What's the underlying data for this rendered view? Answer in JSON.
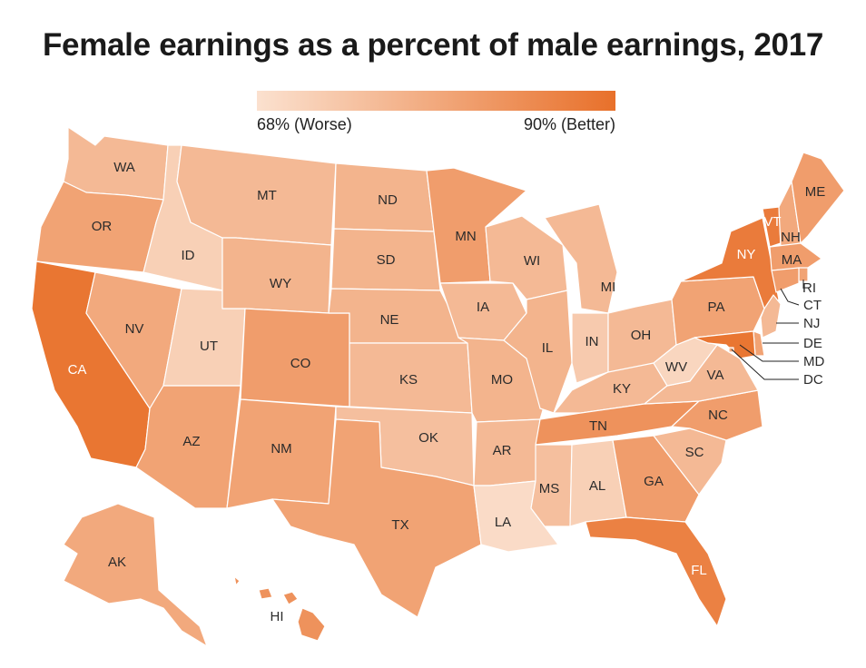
{
  "title": "Female earnings as a percent of male earnings, 2017",
  "legend": {
    "min_label": "68% (Worse)",
    "max_label": "90% (Better)",
    "color_low": "#fbe1cf",
    "color_high": "#e8702a"
  },
  "states": {
    "WA": {
      "label": "WA",
      "shade": 0.35
    },
    "OR": {
      "label": "OR",
      "shade": 0.55
    },
    "CA": {
      "label": "CA",
      "shade": 0.95
    },
    "ID": {
      "label": "ID",
      "shade": 0.15
    },
    "NV": {
      "label": "NV",
      "shade": 0.5
    },
    "UT": {
      "label": "UT",
      "shade": 0.15
    },
    "AZ": {
      "label": "AZ",
      "shade": 0.55
    },
    "MT": {
      "label": "MT",
      "shade": 0.35
    },
    "WY": {
      "label": "WY",
      "shade": 0.4
    },
    "CO": {
      "label": "CO",
      "shade": 0.6
    },
    "NM": {
      "label": "NM",
      "shade": 0.55
    },
    "ND": {
      "label": "ND",
      "shade": 0.4
    },
    "SD": {
      "label": "SD",
      "shade": 0.4
    },
    "NE": {
      "label": "NE",
      "shade": 0.4
    },
    "KS": {
      "label": "KS",
      "shade": 0.35
    },
    "OK": {
      "label": "OK",
      "shade": 0.3
    },
    "TX": {
      "label": "TX",
      "shade": 0.55
    },
    "MN": {
      "label": "MN",
      "shade": 0.6
    },
    "IA": {
      "label": "IA",
      "shade": 0.35
    },
    "MO": {
      "label": "MO",
      "shade": 0.4
    },
    "AR": {
      "label": "AR",
      "shade": 0.35
    },
    "LA": {
      "label": "LA",
      "shade": 0.05
    },
    "WI": {
      "label": "WI",
      "shade": 0.35
    },
    "IL": {
      "label": "IL",
      "shade": 0.4
    },
    "MI": {
      "label": "MI",
      "shade": 0.35
    },
    "IN": {
      "label": "IN",
      "shade": 0.2
    },
    "OH": {
      "label": "OH",
      "shade": 0.35
    },
    "KY": {
      "label": "KY",
      "shade": 0.35
    },
    "TN": {
      "label": "TN",
      "shade": 0.7
    },
    "MS": {
      "label": "MS",
      "shade": 0.3
    },
    "AL": {
      "label": "AL",
      "shade": 0.15
    },
    "GA": {
      "label": "GA",
      "shade": 0.6
    },
    "FL": {
      "label": "FL",
      "shade": 0.85
    },
    "SC": {
      "label": "SC",
      "shade": 0.35
    },
    "NC": {
      "label": "NC",
      "shade": 0.6
    },
    "VA": {
      "label": "VA",
      "shade": 0.35
    },
    "WV": {
      "label": "WV",
      "shade": 0.1
    },
    "PA": {
      "label": "PA",
      "shade": 0.55
    },
    "NY": {
      "label": "NY",
      "shade": 0.9
    },
    "VT": {
      "label": "VT",
      "shade": 0.9
    },
    "NH": {
      "label": "NH",
      "shade": 0.5
    },
    "ME": {
      "label": "ME",
      "shade": 0.6
    },
    "MA": {
      "label": "MA",
      "shade": 0.6
    },
    "RI": {
      "label": "RI",
      "shade": 0.55
    },
    "CT": {
      "label": "CT",
      "shade": 0.6
    },
    "NJ": {
      "label": "NJ",
      "shade": 0.35
    },
    "DE": {
      "label": "DE",
      "shade": 0.55
    },
    "MD": {
      "label": "MD",
      "shade": 0.95
    },
    "DC": {
      "label": "DC",
      "shade": 0.5
    },
    "AK": {
      "label": "AK",
      "shade": 0.5
    },
    "HI": {
      "label": "HI",
      "shade": 0.7
    }
  }
}
